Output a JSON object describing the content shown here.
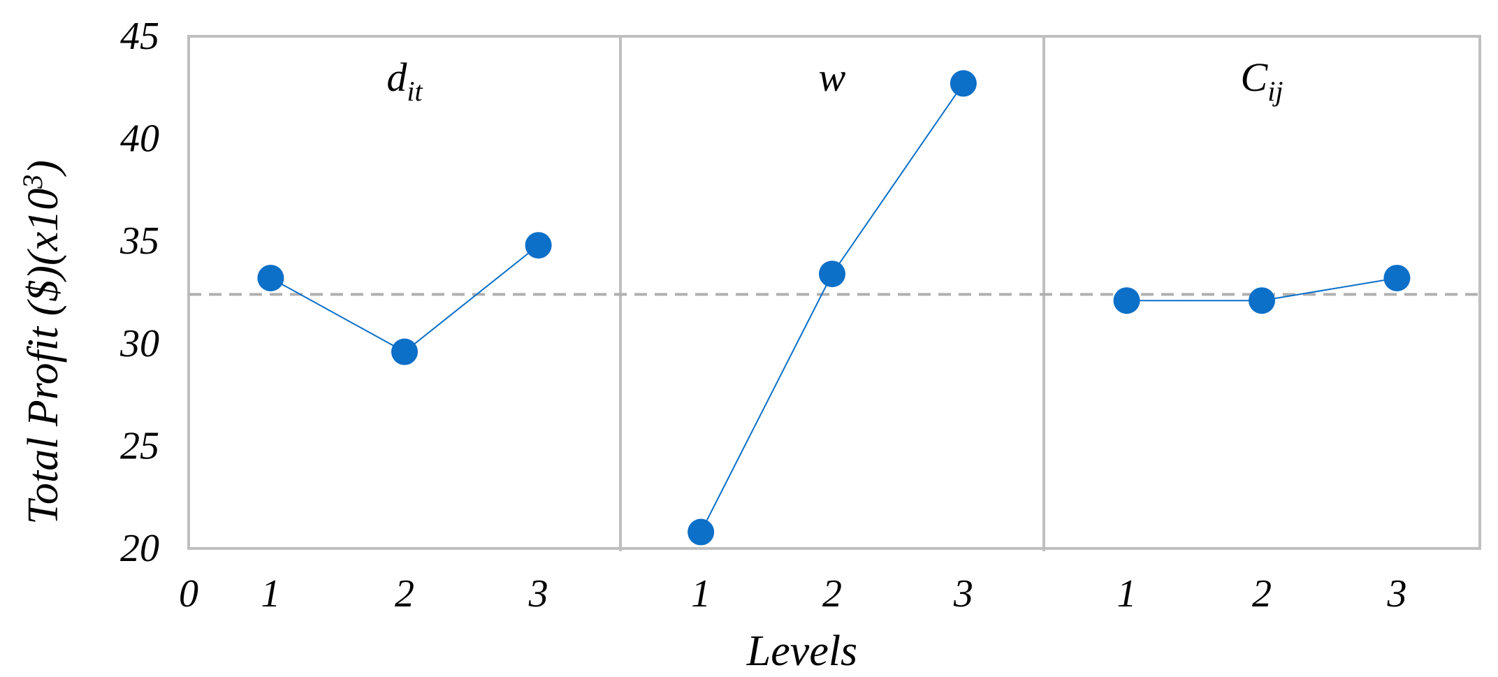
{
  "chart_data": {
    "type": "line",
    "ylabel_main": "Total Profit  ($)(x10",
    "ylabel_sup": "3",
    "ylabel_close": ")",
    "xlabel": "Levels",
    "ylim": [
      20,
      45
    ],
    "yticks": [
      "20",
      "25",
      "30",
      "35",
      "40",
      "45"
    ],
    "x_origin_tick": "0",
    "grand_mean": 32.4,
    "grid": false,
    "panels": [
      {
        "title_base": "d",
        "title_sub": "it",
        "title_style": "italic",
        "levels": [
          "1",
          "2",
          "3"
        ],
        "values": [
          33.2,
          29.6,
          34.8
        ]
      },
      {
        "title_base": "w",
        "title_sub": "",
        "title_style": "normal",
        "levels": [
          "1",
          "2",
          "3"
        ],
        "values": [
          20.8,
          33.4,
          42.7
        ]
      },
      {
        "title_base": "C",
        "title_sub": "ij",
        "title_style": "italic",
        "levels": [
          "1",
          "2",
          "3"
        ],
        "values": [
          32.1,
          32.1,
          33.2
        ]
      }
    ],
    "colors": {
      "series": "#0c6fc8",
      "frame": "#bfbfbf",
      "mean_line": "#b0b0b0"
    }
  }
}
